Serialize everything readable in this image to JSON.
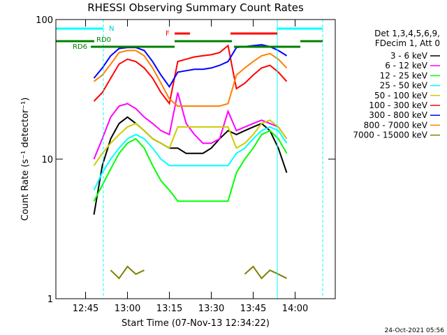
{
  "chart_data": {
    "type": "line",
    "title": "RHESSI Observing Summary Count Rates",
    "x_label": "Start Time (07-Nov-13 12:34:22)",
    "y_label": "Count Rate (s⁻¹ detector⁻¹)",
    "log_y": true,
    "legend_title": [
      "Det 1,3,4,5,6,9,",
      "FDecim 1, Att 0"
    ],
    "legend_position": "right",
    "timestamp": "24-Oct-2021 05:56",
    "annotations": [
      "N",
      "RD0",
      "RD6",
      "F"
    ],
    "xlim": [
      754.367,
      854.367
    ],
    "xticks": [
      {
        "value": 765,
        "label": "12:45"
      },
      {
        "value": 780,
        "label": "13:00"
      },
      {
        "value": 795,
        "label": "13:15"
      },
      {
        "value": 810,
        "label": "13:30"
      },
      {
        "value": 825,
        "label": "13:45"
      },
      {
        "value": 840,
        "label": "14:00"
      }
    ],
    "ylim": [
      1,
      100
    ],
    "yticks": [
      1,
      10,
      100
    ],
    "x": [
      768,
      771,
      774,
      777,
      780,
      783,
      786,
      789,
      792,
      795,
      798,
      801,
      804,
      807,
      810,
      813,
      816,
      819,
      822,
      825,
      828,
      831,
      834,
      837
    ],
    "series": [
      {
        "name": "3 - 6 keV",
        "color": "#000000",
        "values": [
          4,
          9,
          14,
          18,
          20,
          18,
          16,
          14,
          13,
          12,
          12,
          11,
          11,
          11,
          12,
          14,
          16,
          15,
          16,
          17,
          18,
          16,
          12,
          8
        ]
      },
      {
        "name": "6 - 12 keV",
        "color": "#ff00ff",
        "values": [
          10,
          14,
          20,
          24,
          25,
          23,
          20,
          18,
          16,
          15,
          30,
          18,
          15,
          13,
          13,
          14,
          22,
          16,
          17,
          18,
          19,
          18,
          17,
          14
        ]
      },
      {
        "name": "12 - 25 keV",
        "color": "#00ff00",
        "values": [
          5,
          6.5,
          8.5,
          11,
          13,
          14,
          12,
          9,
          7,
          6,
          5,
          5,
          5,
          5,
          5,
          5,
          5,
          8,
          10,
          12,
          15,
          16,
          14,
          11
        ]
      },
      {
        "name": "25 - 50 keV",
        "color": "#00ffff",
        "values": [
          6,
          8,
          10,
          12,
          14,
          15,
          14,
          12,
          10,
          9,
          9,
          9,
          9,
          9,
          9,
          9,
          9,
          11,
          12,
          14,
          16,
          17,
          16,
          13
        ]
      },
      {
        "name": "50 - 100 keV",
        "color": "#cccc00",
        "values": [
          9,
          11,
          13,
          15,
          17,
          18,
          16,
          14,
          13,
          12,
          17,
          17,
          17,
          17,
          17,
          17,
          17,
          12,
          13,
          15,
          18,
          19,
          17,
          14
        ]
      },
      {
        "name": "100 - 300 keV",
        "color": "#ff0000",
        "values": [
          26,
          30,
          38,
          48,
          52,
          50,
          45,
          38,
          30,
          25,
          50,
          52,
          54,
          55,
          56,
          58,
          65,
          32,
          35,
          40,
          45,
          47,
          42,
          36
        ]
      },
      {
        "name": "300 - 800 keV",
        "color": "#0000ff",
        "values": [
          38,
          45,
          55,
          62,
          63,
          63,
          60,
          50,
          40,
          33,
          42,
          43,
          44,
          44,
          45,
          47,
          50,
          63,
          64,
          65,
          66,
          64,
          60,
          55
        ]
      },
      {
        "name": "800 - 7000 keV",
        "color": "#ff8000",
        "values": [
          36,
          40,
          48,
          58,
          60,
          60,
          55,
          45,
          35,
          27,
          24,
          24,
          24,
          24,
          24,
          24,
          25,
          40,
          45,
          50,
          55,
          57,
          52,
          45
        ]
      },
      {
        "name": "7000 - 15000 keV",
        "color": "#808000",
        "values": [
          null,
          null,
          1.6,
          1.4,
          1.7,
          1.5,
          1.6,
          null,
          null,
          null,
          null,
          null,
          null,
          null,
          null,
          null,
          null,
          null,
          1.5,
          1.7,
          1.4,
          1.6,
          1.5,
          1.4
        ]
      }
    ]
  }
}
